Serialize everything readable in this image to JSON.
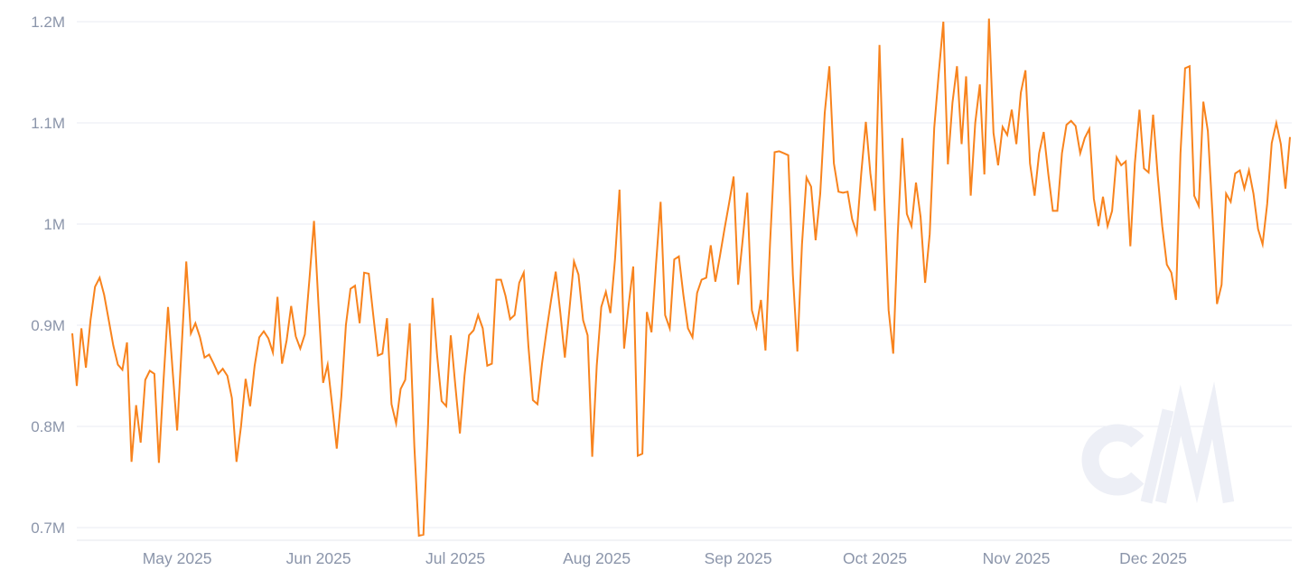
{
  "page": {
    "background": "#ffffff"
  },
  "colors": {
    "line": "#f8831d",
    "grid": "#e9ebf3",
    "axis_line": "#e4e7ee",
    "axis_label": "#8b95aa",
    "watermark": "#edeff6",
    "background": "#ffffff"
  },
  "watermark": {
    "name": "coinmetrics-logo",
    "text": "CM"
  },
  "chart_data": {
    "type": "line",
    "title": "",
    "xlabel": "",
    "ylabel": "",
    "legend": "none",
    "grid": "horizontal-only",
    "x_axis": {
      "type": "time",
      "tick_labels": [
        "May 2025",
        "Jun 2025",
        "Jul 2025",
        "Aug 2025",
        "Sep 2025",
        "Oct 2025",
        "Nov 2025",
        "Dec 2025"
      ]
    },
    "y_axis": {
      "tick_labels": [
        "1.2M",
        "1.1M",
        "1M",
        "0.9M",
        "0.8M",
        "0.7M"
      ],
      "tick_values": [
        1.2,
        1.1,
        1.0,
        0.9,
        0.8,
        0.7
      ],
      "min": 0.685,
      "max": 1.205,
      "unit": "M"
    },
    "series": [
      {
        "name": "value",
        "color": "#f8831d",
        "start_date": "2025-04-08",
        "interval_days": 1,
        "unit_scale": "millions",
        "values": [
          0.892,
          0.84,
          0.897,
          0.858,
          0.905,
          0.938,
          0.947,
          0.93,
          0.905,
          0.88,
          0.861,
          0.856,
          0.883,
          0.765,
          0.821,
          0.784,
          0.846,
          0.855,
          0.852,
          0.764,
          0.845,
          0.918,
          0.855,
          0.796,
          0.88,
          0.963,
          0.892,
          0.902,
          0.888,
          0.868,
          0.871,
          0.862,
          0.852,
          0.857,
          0.85,
          0.828,
          0.765,
          0.8,
          0.847,
          0.82,
          0.86,
          0.888,
          0.894,
          0.887,
          0.873,
          0.928,
          0.862,
          0.885,
          0.919,
          0.889,
          0.877,
          0.891,
          0.945,
          1.003,
          0.92,
          0.843,
          0.861,
          0.82,
          0.778,
          0.83,
          0.9,
          0.936,
          0.939,
          0.902,
          0.952,
          0.951,
          0.91,
          0.87,
          0.872,
          0.907,
          0.822,
          0.803,
          0.837,
          0.846,
          0.902,
          0.78,
          0.692,
          0.693,
          0.8,
          0.927,
          0.87,
          0.825,
          0.82,
          0.89,
          0.84,
          0.793,
          0.85,
          0.89,
          0.895,
          0.91,
          0.897,
          0.86,
          0.862,
          0.945,
          0.945,
          0.929,
          0.906,
          0.91,
          0.942,
          0.952,
          0.88,
          0.826,
          0.822,
          0.862,
          0.895,
          0.925,
          0.953,
          0.913,
          0.868,
          0.915,
          0.963,
          0.95,
          0.905,
          0.89,
          0.77,
          0.86,
          0.918,
          0.933,
          0.912,
          0.965,
          1.034,
          0.877,
          0.92,
          0.958,
          0.771,
          0.773,
          0.913,
          0.893,
          0.96,
          1.022,
          0.91,
          0.897,
          0.965,
          0.968,
          0.93,
          0.897,
          0.888,
          0.932,
          0.945,
          0.947,
          0.979,
          0.943,
          0.968,
          0.995,
          1.02,
          1.047,
          0.94,
          0.985,
          1.031,
          0.915,
          0.898,
          0.925,
          0.875,
          0.98,
          1.071,
          1.072,
          1.07,
          1.068,
          0.95,
          0.874,
          0.98,
          1.046,
          1.037,
          0.984,
          1.03,
          1.11,
          1.156,
          1.06,
          1.032,
          1.031,
          1.032,
          1.005,
          0.991,
          1.05,
          1.101,
          1.05,
          1.013,
          1.177,
          1.03,
          0.915,
          0.872,
          0.99,
          1.085,
          1.01,
          0.998,
          1.041,
          1.007,
          0.942,
          0.99,
          1.095,
          1.15,
          1.2,
          1.059,
          1.12,
          1.156,
          1.079,
          1.146,
          1.028,
          1.1,
          1.138,
          1.049,
          1.203,
          1.09,
          1.058,
          1.096,
          1.088,
          1.113,
          1.079,
          1.13,
          1.152,
          1.06,
          1.028,
          1.07,
          1.091,
          1.05,
          1.013,
          1.013,
          1.07,
          1.098,
          1.102,
          1.097,
          1.07,
          1.085,
          1.094,
          1.025,
          0.998,
          1.027,
          0.998,
          1.013,
          1.066,
          1.058,
          1.062,
          0.978,
          1.06,
          1.113,
          1.055,
          1.051,
          1.108,
          1.048,
          0.998,
          0.96,
          0.952,
          0.925,
          1.07,
          1.154,
          1.156,
          1.028,
          1.018,
          1.121,
          1.092,
          1.01,
          0.921,
          0.94,
          1.03,
          1.022,
          1.05,
          1.053,
          1.035,
          1.053,
          1.03,
          0.995,
          0.98,
          1.02,
          1.08,
          1.1,
          1.079,
          1.035,
          1.086
        ]
      }
    ]
  }
}
